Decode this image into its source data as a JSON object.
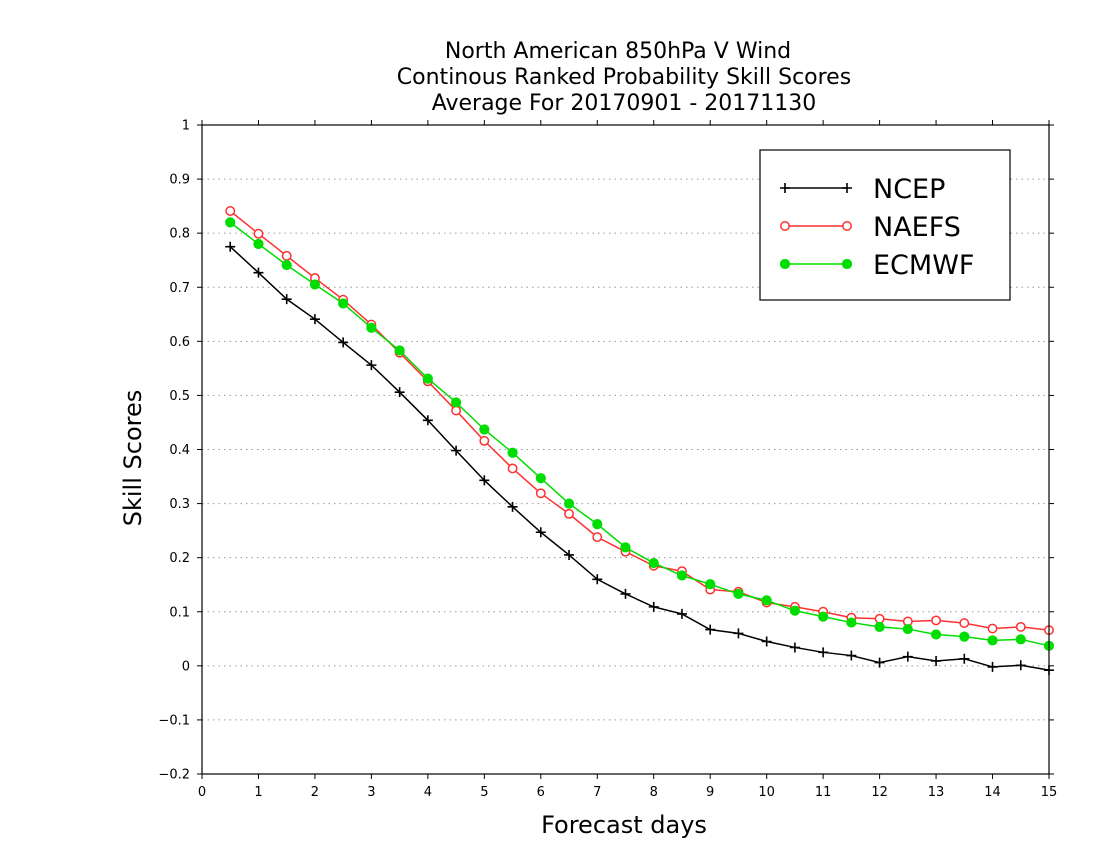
{
  "chart_data": {
    "type": "line",
    "title": [
      "North American 850hPa V Wind",
      "Continous Ranked Probability Skill Scores",
      "Average For 20170901 - 20171130"
    ],
    "xlabel": "Forecast days",
    "ylabel": "Skill Scores",
    "xlim": [
      0,
      15
    ],
    "ylim": [
      -0.2,
      1
    ],
    "xticks": [
      0,
      1,
      2,
      3,
      4,
      5,
      6,
      7,
      8,
      9,
      10,
      11,
      12,
      13,
      14,
      15
    ],
    "xtick_labels": [
      "0",
      "1",
      "2",
      "3",
      "4",
      "5",
      "6",
      "7",
      "8",
      "9",
      "10",
      "11",
      "12",
      "13",
      "14",
      "15"
    ],
    "yticks": [
      -0.2,
      -0.1,
      0,
      0.1,
      0.2,
      0.3,
      0.4,
      0.5,
      0.6,
      0.7,
      0.8,
      0.9,
      1
    ],
    "ytick_labels": [
      "−0.2",
      "−0.1",
      "0",
      "0.1",
      "0.2",
      "0.3",
      "0.4",
      "0.5",
      "0.6",
      "0.7",
      "0.8",
      "0.9",
      "1"
    ],
    "grid": "horizontal dotted",
    "legend_position": "top-right",
    "x": [
      0.5,
      1,
      1.5,
      2,
      2.5,
      3,
      3.5,
      4,
      4.5,
      5,
      5.5,
      6,
      6.5,
      7,
      7.5,
      8,
      8.5,
      9,
      9.5,
      10,
      10.5,
      11,
      11.5,
      12,
      12.5,
      13,
      13.5,
      14,
      14.5,
      15
    ],
    "series": [
      {
        "name": "NCEP",
        "color": "#000000",
        "marker": "plus",
        "values": [
          0.775,
          0.727,
          0.678,
          0.641,
          0.598,
          0.556,
          0.506,
          0.454,
          0.398,
          0.343,
          0.294,
          0.247,
          0.205,
          0.16,
          0.133,
          0.109,
          0.096,
          0.067,
          0.06,
          0.045,
          0.034,
          0.025,
          0.019,
          0.006,
          0.017,
          0.009,
          0.013,
          -0.002,
          0.001,
          -0.008
        ]
      },
      {
        "name": "NAEFS",
        "color": "#ff3030",
        "marker": "open-circle",
        "values": [
          0.841,
          0.799,
          0.758,
          0.717,
          0.677,
          0.631,
          0.579,
          0.526,
          0.472,
          0.416,
          0.365,
          0.319,
          0.281,
          0.238,
          0.211,
          0.185,
          0.175,
          0.141,
          0.137,
          0.117,
          0.109,
          0.1,
          0.089,
          0.087,
          0.082,
          0.084,
          0.079,
          0.069,
          0.072,
          0.066
        ]
      },
      {
        "name": "ECMWF",
        "color": "#00dd00",
        "marker": "filled-circle",
        "values": [
          0.82,
          0.78,
          0.741,
          0.705,
          0.67,
          0.625,
          0.583,
          0.531,
          0.487,
          0.437,
          0.394,
          0.347,
          0.3,
          0.262,
          0.219,
          0.19,
          0.167,
          0.151,
          0.133,
          0.121,
          0.102,
          0.091,
          0.08,
          0.072,
          0.068,
          0.058,
          0.054,
          0.047,
          0.049,
          0.037
        ]
      }
    ]
  }
}
